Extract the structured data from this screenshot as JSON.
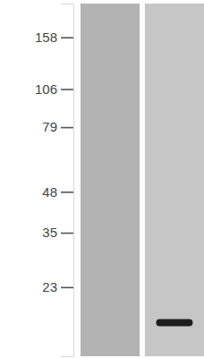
{
  "chart_data": {
    "type": "western_blot",
    "categories": [
      null,
      null
    ],
    "values": [
      null,
      17.5
    ],
    "color": "#1e1e1e",
    "log": "y",
    "ylim": [
      205,
      13.5
    ],
    "yticks": [
      158,
      106,
      79,
      48,
      35,
      23
    ],
    "tick_labels": "y"
  }
}
